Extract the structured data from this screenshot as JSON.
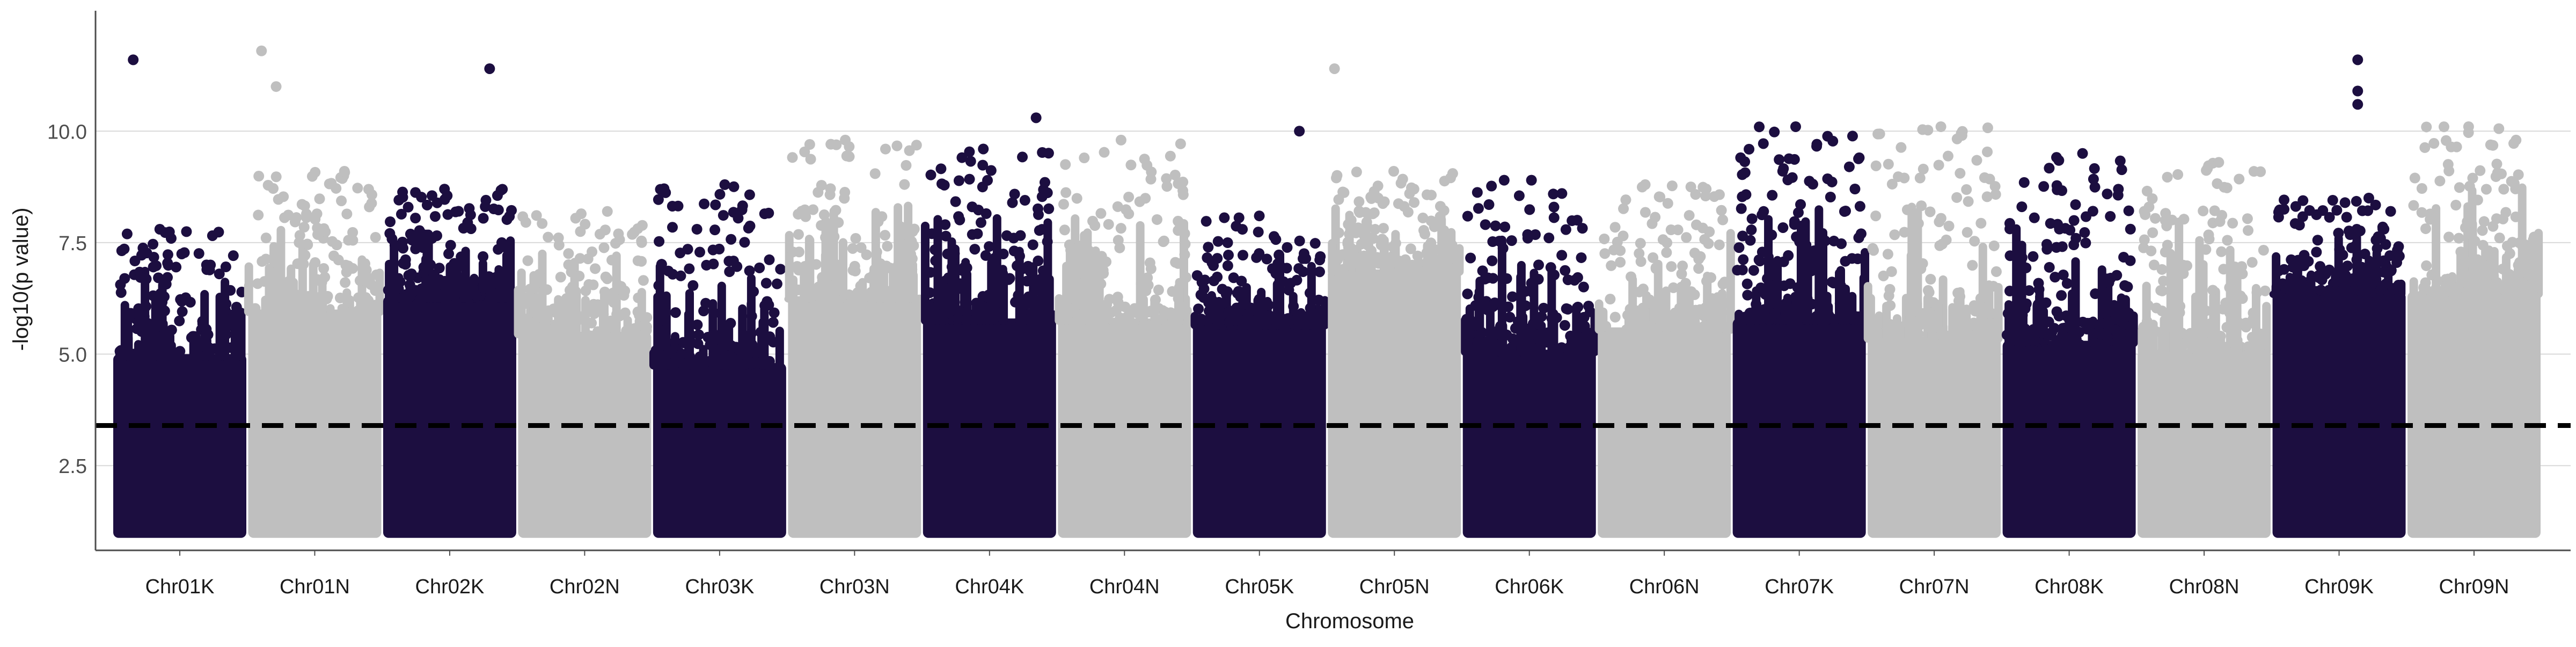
{
  "chart_data": {
    "type": "scatter",
    "subtype": "manhattan",
    "title": "",
    "xlabel": "Chromosome",
    "ylabel": "-log10(p value)",
    "ylim": [
      0.6,
      12.7
    ],
    "yticks": [
      2.5,
      5.0,
      7.5,
      10.0
    ],
    "ytick_labels": [
      "2.5",
      "5.0",
      "7.5",
      "10.0"
    ],
    "grid": "horizontal major gridlines at y ticks",
    "legend": "none",
    "threshold": 3.4,
    "threshold_style": "black dashed line",
    "base_min": 1.0,
    "colors": {
      "odd": "#1c0e40",
      "even": "#bfbfbf",
      "threshold": "#000000",
      "grid": "#d9d9d9",
      "axis": "#4d4d4d",
      "text": "#1a1a1a"
    },
    "categories": [
      "Chr01K",
      "Chr01N",
      "Chr02K",
      "Chr02N",
      "Chr03K",
      "Chr03N",
      "Chr04K",
      "Chr04N",
      "Chr05K",
      "Chr05N",
      "Chr06K",
      "Chr06N",
      "Chr07K",
      "Chr07N",
      "Chr08K",
      "Chr08N",
      "Chr09K",
      "Chr09N"
    ],
    "chromosomes": [
      {
        "name": "Chr01K",
        "color": "odd",
        "dense_top": 5.0,
        "spike_max": 7.8,
        "outliers": [
          {
            "pos": 0.15,
            "y": 11.6
          }
        ]
      },
      {
        "name": "Chr01N",
        "color": "even",
        "dense_top": 6.0,
        "spike_max": 9.1,
        "outliers": [
          {
            "pos": 0.1,
            "y": 11.8
          },
          {
            "pos": 0.21,
            "y": 11.0
          }
        ]
      },
      {
        "name": "Chr02K",
        "color": "odd",
        "dense_top": 6.3,
        "spike_max": 8.7,
        "outliers": [
          {
            "pos": 0.8,
            "y": 11.4
          }
        ]
      },
      {
        "name": "Chr02N",
        "color": "even",
        "dense_top": 5.5,
        "spike_max": 8.2,
        "outliers": []
      },
      {
        "name": "Chr03K",
        "color": "odd",
        "dense_top": 4.8,
        "spike_max": 8.8,
        "outliers": []
      },
      {
        "name": "Chr03N",
        "color": "even",
        "dense_top": 6.3,
        "spike_max": 9.8,
        "outliers": []
      },
      {
        "name": "Chr04K",
        "color": "odd",
        "dense_top": 5.8,
        "spike_max": 9.6,
        "outliers": [
          {
            "pos": 0.85,
            "y": 10.3
          }
        ]
      },
      {
        "name": "Chr04N",
        "color": "even",
        "dense_top": 5.8,
        "spike_max": 9.8,
        "outliers": []
      },
      {
        "name": "Chr05K",
        "color": "odd",
        "dense_top": 5.7,
        "spike_max": 8.1,
        "outliers": [
          {
            "pos": 0.8,
            "y": 10.0
          }
        ]
      },
      {
        "name": "Chr05N",
        "color": "even",
        "dense_top": 6.9,
        "spike_max": 9.1,
        "outliers": [
          {
            "pos": 0.05,
            "y": 11.4
          }
        ]
      },
      {
        "name": "Chr06K",
        "color": "odd",
        "dense_top": 5.1,
        "spike_max": 8.9,
        "outliers": []
      },
      {
        "name": "Chr06N",
        "color": "even",
        "dense_top": 5.6,
        "spike_max": 8.8,
        "outliers": []
      },
      {
        "name": "Chr07K",
        "color": "odd",
        "dense_top": 5.8,
        "spike_max": 10.1,
        "outliers": []
      },
      {
        "name": "Chr07N",
        "color": "even",
        "dense_top": 5.4,
        "spike_max": 10.1,
        "outliers": []
      },
      {
        "name": "Chr08K",
        "color": "odd",
        "dense_top": 5.3,
        "spike_max": 9.5,
        "outliers": []
      },
      {
        "name": "Chr08N",
        "color": "even",
        "dense_top": 5.1,
        "spike_max": 9.3,
        "outliers": []
      },
      {
        "name": "Chr09K",
        "color": "odd",
        "dense_top": 6.4,
        "spike_max": 8.5,
        "outliers": [
          {
            "pos": 0.64,
            "y": 11.6
          },
          {
            "pos": 0.64,
            "y": 10.9
          },
          {
            "pos": 0.64,
            "y": 10.6
          }
        ]
      },
      {
        "name": "Chr09N",
        "color": "even",
        "dense_top": 6.4,
        "spike_max": 10.1,
        "outliers": []
      }
    ]
  }
}
